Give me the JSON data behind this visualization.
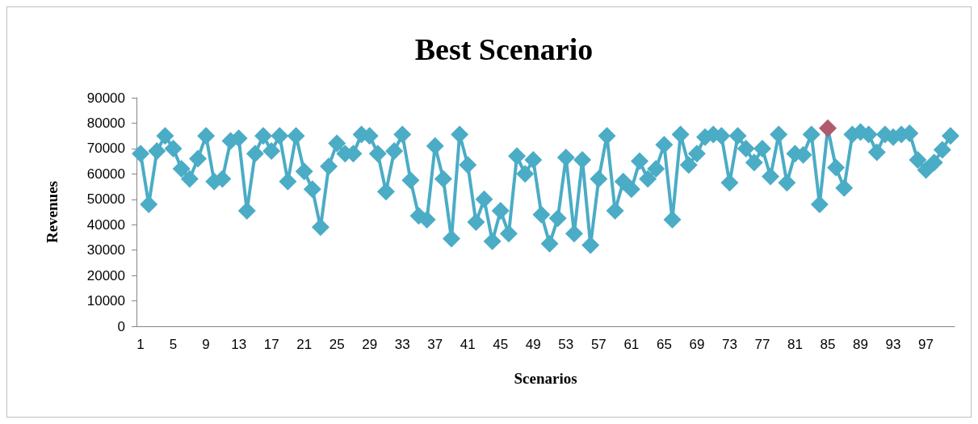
{
  "chart_data": {
    "type": "line",
    "title": "Best Scenario",
    "xlabel": "Scenarios",
    "ylabel": "Revenues",
    "categories": [
      "1",
      null,
      null,
      null,
      "5",
      null,
      null,
      null,
      "9",
      null,
      null,
      null,
      "13",
      null,
      null,
      null,
      "17",
      null,
      null,
      null,
      "21",
      null,
      null,
      null,
      "25",
      null,
      null,
      null,
      "29",
      null,
      null,
      null,
      "33",
      null,
      null,
      null,
      "37",
      null,
      null,
      null,
      "41",
      null,
      null,
      null,
      "45",
      null,
      null,
      null,
      "49",
      null,
      null,
      null,
      "53",
      null,
      null,
      null,
      "57",
      null,
      null,
      null,
      "61",
      null,
      null,
      null,
      "65",
      null,
      null,
      null,
      "69",
      null,
      null,
      null,
      "73",
      null,
      null,
      null,
      "77",
      null,
      null,
      null,
      "81",
      null,
      null,
      null,
      "85",
      null,
      null,
      null,
      "89",
      null,
      null,
      null,
      "93",
      null,
      null,
      null,
      "97",
      null,
      null,
      null
    ],
    "series": [
      {
        "color": "#4bacc6",
        "colors": [
          "#4bacc6",
          "#4bacc6",
          "#4bacc6",
          "#4bacc6",
          "#4bacc6",
          "#4bacc6",
          "#4bacc6",
          "#4bacc6",
          "#4bacc6",
          "#4bacc6",
          "#4bacc6",
          "#4bacc6",
          "#4bacc6",
          "#4bacc6",
          "#4bacc6",
          "#4bacc6",
          "#4bacc6",
          "#4bacc6",
          "#4bacc6",
          "#4bacc6",
          "#4bacc6",
          "#4bacc6",
          "#4bacc6",
          "#4bacc6",
          "#4bacc6",
          "#4bacc6",
          "#4bacc6",
          "#4bacc6",
          "#4bacc6",
          "#4bacc6",
          "#4bacc6",
          "#4bacc6",
          "#4bacc6",
          "#4bacc6",
          "#4bacc6",
          "#4bacc6",
          "#4bacc6",
          "#4bacc6",
          "#4bacc6",
          "#4bacc6",
          "#4bacc6",
          "#4bacc6",
          "#4bacc6",
          "#4bacc6",
          "#4bacc6",
          "#4bacc6",
          "#4bacc6",
          "#4bacc6",
          "#4bacc6",
          "#4bacc6",
          "#4bacc6",
          "#4bacc6",
          "#4bacc6",
          "#4bacc6",
          "#4bacc6",
          "#4bacc6",
          "#4bacc6",
          "#4bacc6",
          "#4bacc6",
          "#4bacc6",
          "#4bacc6",
          "#4bacc6",
          "#4bacc6",
          "#4bacc6",
          "#4bacc6",
          "#4bacc6",
          "#4bacc6",
          "#4bacc6",
          "#4bacc6",
          "#4bacc6",
          "#4bacc6",
          "#4bacc6",
          "#4bacc6",
          "#4bacc6",
          "#4bacc6",
          "#4bacc6",
          "#4bacc6",
          "#4bacc6",
          "#4bacc6",
          "#4bacc6",
          "#4bacc6",
          "#4bacc6",
          "#4bacc6",
          "#4bacc6",
          "#b05a6e",
          "#4bacc6",
          "#4bacc6",
          "#4bacc6",
          "#4bacc6",
          "#4bacc6",
          "#4bacc6",
          "#4bacc6",
          "#4bacc6",
          "#4bacc6",
          "#4bacc6",
          "#4bacc6",
          "#4bacc6",
          "#4bacc6",
          "#4bacc6",
          "#4bacc6"
        ],
        "values": [
          68000,
          48000,
          69000,
          75000,
          70000,
          62000,
          58000,
          66000,
          75000,
          57000,
          58000,
          73000,
          74000,
          45500,
          68000,
          75000,
          69000,
          75000,
          57000,
          75000,
          61000,
          54000,
          39000,
          63000,
          72000,
          68000,
          68000,
          75500,
          75000,
          68000,
          53000,
          69000,
          75500,
          57500,
          43500,
          42000,
          71000,
          58000,
          34500,
          75500,
          63500,
          41000,
          50000,
          33500,
          45500,
          36500,
          67000,
          60000,
          65500,
          44000,
          32500,
          42500,
          66500,
          36500,
          65500,
          32000,
          58000,
          75000,
          45500,
          57000,
          54000,
          65000,
          58000,
          62000,
          71500,
          42000,
          75500,
          63500,
          68000,
          74500,
          75500,
          75000,
          56500,
          75000,
          70000,
          64500,
          70000,
          59000,
          75500,
          56500,
          68000,
          67500,
          75500,
          48000,
          78000,
          62500,
          54500,
          75500,
          76500,
          75500,
          68500,
          75500,
          74500,
          75500,
          76000,
          65500,
          61500,
          64500,
          69500,
          75000
        ]
      }
    ],
    "ylim": [
      0,
      90000
    ],
    "yticks": [
      0,
      10000,
      20000,
      30000,
      40000,
      50000,
      60000,
      70000,
      80000,
      90000
    ],
    "grid": false,
    "marker": "diamond",
    "line_style": "solid"
  }
}
